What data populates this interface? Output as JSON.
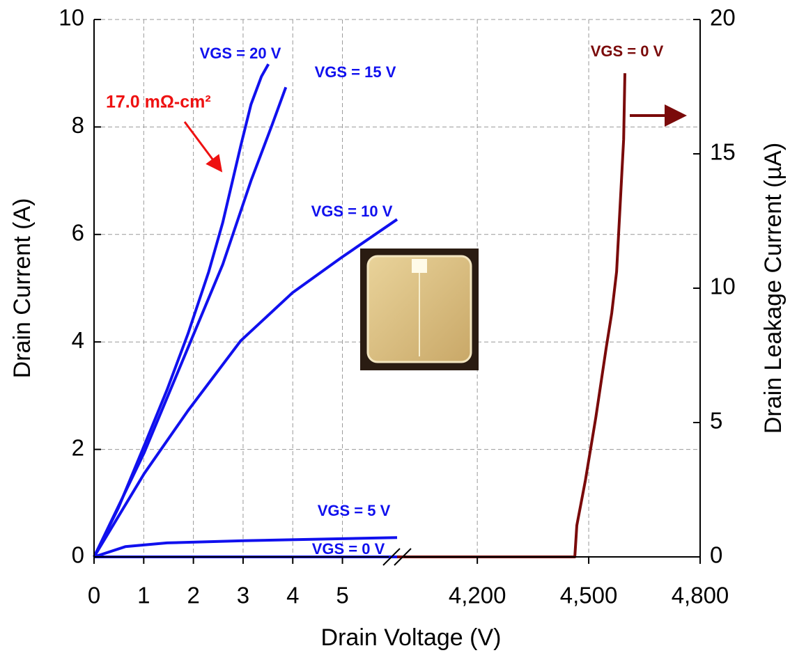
{
  "chart_data": {
    "type": "line",
    "x_label": "Drain Voltage (V)",
    "y_label": "Drain Current (A)",
    "y2_label": "Drain Leakage Current (µA)",
    "annotation": "17.0 mΩ-cm²",
    "annotation_color": "#ee1111",
    "xlim": [
      0,
      6.1
    ],
    "xticks": [
      0,
      1,
      2,
      3,
      4,
      5
    ],
    "x2lim": [
      3984,
      4800
    ],
    "x2ticks": [
      {
        "value": 4200,
        "label": "4,200"
      },
      {
        "value": 4500,
        "label": "4,500"
      },
      {
        "value": 4800,
        "label": "4,800"
      }
    ],
    "ylim": [
      0,
      10
    ],
    "yticks": [
      0,
      2,
      4,
      6,
      8,
      10
    ],
    "y2lim": [
      0,
      20
    ],
    "y2ticks": [
      0,
      5,
      10,
      15,
      20
    ],
    "grid": true,
    "series": [
      {
        "name": "VGS = 20 V",
        "color": "#1010ee",
        "x": [
          0,
          0.49,
          1.01,
          1.47,
          1.89,
          2.31,
          2.59,
          2.95,
          3.16,
          3.37,
          3.51
        ],
        "values": [
          0,
          0.91,
          2.07,
          3.11,
          4.15,
          5.31,
          6.22,
          7.64,
          8.42,
          8.94,
          9.17
        ]
      },
      {
        "name": "VGS = 15 V",
        "color": "#1010ee",
        "x": [
          0,
          1.01,
          1.89,
          2.59,
          3.16,
          3.58,
          3.86
        ],
        "values": [
          0,
          1.94,
          3.89,
          5.44,
          7.0,
          8.03,
          8.74
        ]
      },
      {
        "name": "VGS = 10 V",
        "color": "#1010ee",
        "x": [
          0,
          1.01,
          1.89,
          2.95,
          4.0,
          4.98,
          6.1
        ],
        "values": [
          0,
          1.55,
          2.72,
          4.02,
          4.92,
          5.57,
          6.28
        ]
      },
      {
        "name": "VGS = 5 V",
        "color": "#1010ee",
        "x": [
          0,
          0.63,
          1.47,
          3.02,
          6.1
        ],
        "values": [
          0,
          0.19,
          0.26,
          0.3,
          0.36
        ]
      },
      {
        "name": "VGS = 0 V",
        "color": "#1010ee",
        "x": [
          0,
          6.1
        ],
        "values": [
          0,
          0
        ]
      },
      {
        "name": "VGS = 0 V",
        "color": "#7a0a0a",
        "axis": "y2",
        "xaxis": "x2",
        "x": [
          3984,
          4462.5,
          4468,
          4491,
          4519,
          4547,
          4562,
          4575,
          4584,
          4594,
          4597.5
        ],
        "values": [
          0,
          0,
          1.17,
          2.85,
          5.18,
          7.77,
          9.07,
          10.62,
          12.95,
          15.54,
          18.0
        ]
      }
    ]
  }
}
